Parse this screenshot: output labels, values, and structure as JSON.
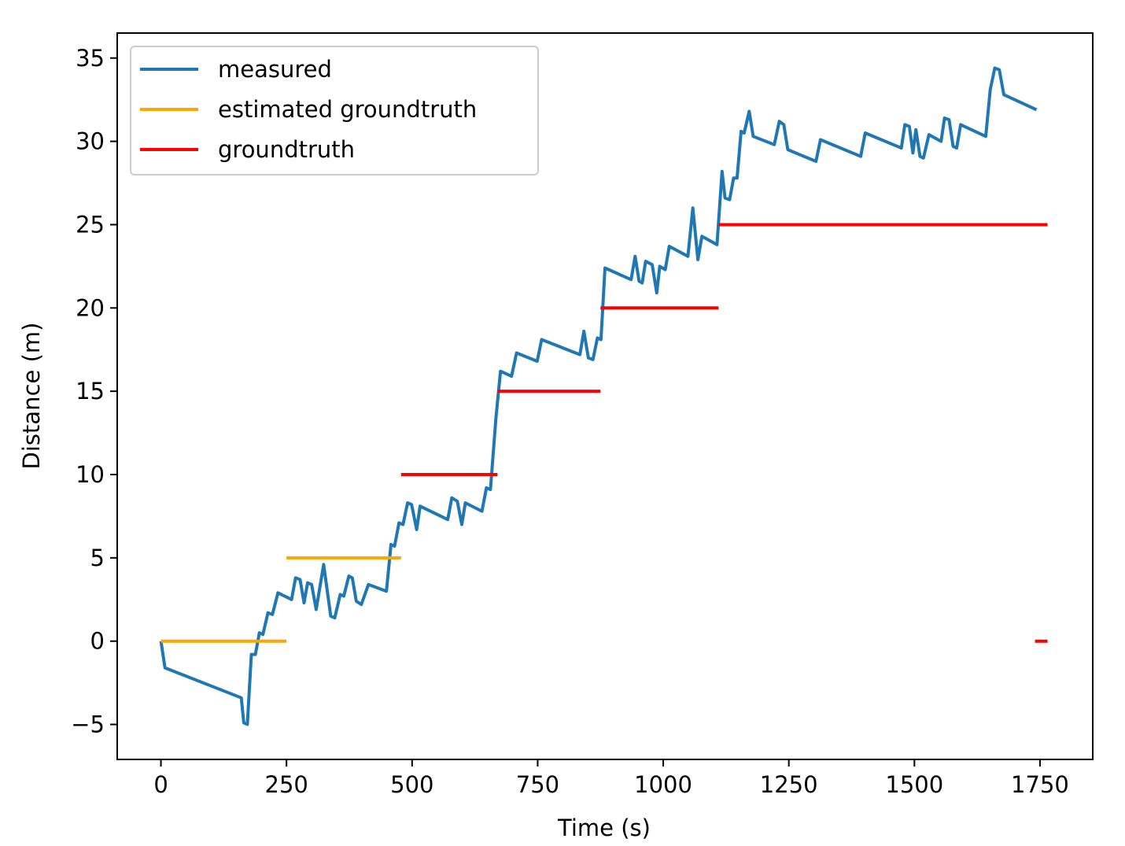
{
  "chart_data": {
    "type": "line",
    "title": "",
    "xlabel": "Time (s)",
    "ylabel": "Distance (m)",
    "xlim": [
      -87,
      1855
    ],
    "ylim": [
      -7.1,
      36.5
    ],
    "grid": false,
    "legend_position": "top-left",
    "x_ticks": [
      0,
      250,
      500,
      750,
      1000,
      1250,
      1500,
      1750
    ],
    "x_tick_labels": [
      "0",
      "250",
      "500",
      "750",
      "1000",
      "1250",
      "1500",
      "1750"
    ],
    "y_ticks": [
      -5,
      0,
      5,
      10,
      15,
      20,
      25,
      30,
      35
    ],
    "y_tick_labels": [
      "−5",
      "0",
      "5",
      "10",
      "15",
      "20",
      "25",
      "30",
      "35"
    ],
    "series": [
      {
        "name": "measured",
        "color": "#1f77b4",
        "kind": "line",
        "points": [
          [
            0,
            0.0
          ],
          [
            8,
            -1.6
          ],
          [
            160,
            -3.4
          ],
          [
            165,
            -4.9
          ],
          [
            172,
            -5.0
          ],
          [
            180,
            -0.8
          ],
          [
            188,
            -0.8
          ],
          [
            196,
            0.5
          ],
          [
            203,
            0.4
          ],
          [
            213,
            1.7
          ],
          [
            222,
            1.6
          ],
          [
            233,
            2.9
          ],
          [
            260,
            2.5
          ],
          [
            268,
            3.8
          ],
          [
            277,
            3.7
          ],
          [
            285,
            2.3
          ],
          [
            292,
            3.5
          ],
          [
            300,
            3.4
          ],
          [
            309,
            1.9
          ],
          [
            324,
            4.6
          ],
          [
            338,
            1.5
          ],
          [
            346,
            1.4
          ],
          [
            357,
            2.8
          ],
          [
            364,
            2.7
          ],
          [
            374,
            3.9
          ],
          [
            381,
            3.8
          ],
          [
            389,
            2.4
          ],
          [
            399,
            2.2
          ],
          [
            413,
            3.4
          ],
          [
            449,
            3.0
          ],
          [
            458,
            5.8
          ],
          [
            465,
            5.7
          ],
          [
            474,
            7.1
          ],
          [
            482,
            7.0
          ],
          [
            491,
            8.3
          ],
          [
            499,
            8.2
          ],
          [
            509,
            6.7
          ],
          [
            516,
            8.1
          ],
          [
            571,
            7.3
          ],
          [
            579,
            8.6
          ],
          [
            590,
            8.4
          ],
          [
            599,
            7.0
          ],
          [
            606,
            8.3
          ],
          [
            639,
            7.8
          ],
          [
            648,
            9.2
          ],
          [
            656,
            9.1
          ],
          [
            667,
            13.4
          ],
          [
            676,
            16.2
          ],
          [
            698,
            15.9
          ],
          [
            708,
            17.3
          ],
          [
            749,
            16.8
          ],
          [
            758,
            18.1
          ],
          [
            834,
            17.2
          ],
          [
            842,
            18.6
          ],
          [
            851,
            17.0
          ],
          [
            860,
            16.9
          ],
          [
            869,
            18.2
          ],
          [
            876,
            18.1
          ],
          [
            884,
            22.4
          ],
          [
            936,
            21.7
          ],
          [
            944,
            23.1
          ],
          [
            952,
            21.6
          ],
          [
            958,
            21.5
          ],
          [
            965,
            22.8
          ],
          [
            978,
            22.6
          ],
          [
            987,
            20.9
          ],
          [
            993,
            22.5
          ],
          [
            1004,
            22.3
          ],
          [
            1012,
            23.7
          ],
          [
            1049,
            23.1
          ],
          [
            1059,
            26.0
          ],
          [
            1069,
            22.9
          ],
          [
            1077,
            24.3
          ],
          [
            1107,
            23.8
          ],
          [
            1117,
            28.2
          ],
          [
            1123,
            26.6
          ],
          [
            1132,
            26.5
          ],
          [
            1140,
            27.8
          ],
          [
            1147,
            27.8
          ],
          [
            1155,
            30.6
          ],
          [
            1161,
            30.5
          ],
          [
            1171,
            31.8
          ],
          [
            1179,
            30.3
          ],
          [
            1221,
            29.8
          ],
          [
            1231,
            31.2
          ],
          [
            1240,
            31.0
          ],
          [
            1248,
            29.5
          ],
          [
            1304,
            28.8
          ],
          [
            1313,
            30.1
          ],
          [
            1393,
            29.1
          ],
          [
            1402,
            30.5
          ],
          [
            1474,
            29.6
          ],
          [
            1481,
            31.0
          ],
          [
            1490,
            30.9
          ],
          [
            1497,
            29.3
          ],
          [
            1503,
            30.7
          ],
          [
            1511,
            29.1
          ],
          [
            1518,
            29.0
          ],
          [
            1529,
            30.4
          ],
          [
            1553,
            30.0
          ],
          [
            1560,
            31.4
          ],
          [
            1569,
            31.3
          ],
          [
            1577,
            29.7
          ],
          [
            1584,
            29.6
          ],
          [
            1592,
            31.0
          ],
          [
            1642,
            30.3
          ],
          [
            1651,
            33.1
          ],
          [
            1660,
            34.4
          ],
          [
            1669,
            34.3
          ],
          [
            1678,
            32.8
          ],
          [
            1743,
            31.9
          ]
        ]
      },
      {
        "name": "estimated groundtruth",
        "color": "#ffa500",
        "kind": "steps",
        "segments": [
          {
            "x": [
              0,
              250
            ],
            "y": 0
          },
          {
            "x": [
              250,
              478
            ],
            "y": 5
          }
        ]
      },
      {
        "name": "groundtruth",
        "color": "#ff0000",
        "kind": "steps",
        "segments": [
          {
            "x": [
              478,
              670
            ],
            "y": 10
          },
          {
            "x": [
              670,
              875
            ],
            "y": 15
          },
          {
            "x": [
              875,
              1110
            ],
            "y": 20
          },
          {
            "x": [
              1110,
              1765
            ],
            "y": 25
          },
          {
            "x": [
              1740,
              1765
            ],
            "y": 0
          }
        ]
      }
    ]
  }
}
